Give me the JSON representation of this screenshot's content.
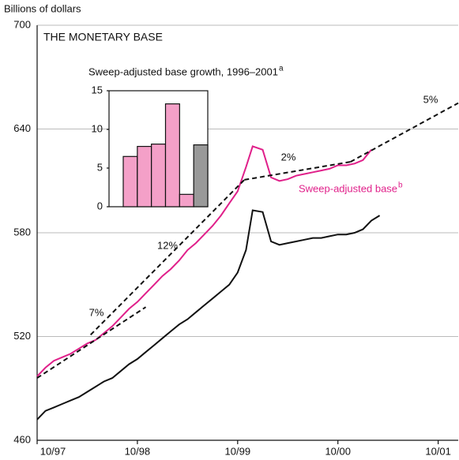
{
  "chart_data": [
    {
      "type": "line",
      "title": "THE MONETARY BASE",
      "y_axis_label": "Billions of dollars",
      "xlim": [
        0,
        50.4
      ],
      "ylim": [
        460,
        700
      ],
      "xticks": [
        {
          "value": 0,
          "label": "10/97"
        },
        {
          "value": 12,
          "label": "10/98"
        },
        {
          "value": 24,
          "label": "10/99"
        },
        {
          "value": 36,
          "label": "10/00"
        },
        {
          "value": 48,
          "label": "10/01"
        }
      ],
      "yticks": [
        460,
        520,
        580,
        640,
        700
      ],
      "grid": true,
      "series": [
        {
          "color": "#111111",
          "x": [
            0,
            1,
            2,
            3,
            4,
            5,
            6,
            7,
            8,
            9,
            10,
            11,
            12,
            13,
            14,
            15,
            16,
            17,
            18,
            19,
            20,
            21,
            22,
            23,
            24,
            25,
            25.8,
            27,
            28,
            29,
            30,
            31,
            32,
            33,
            34,
            35,
            36,
            37,
            38,
            39,
            40,
            41
          ],
          "values": [
            472,
            477,
            479,
            481,
            483,
            485,
            488,
            491,
            494,
            496,
            500,
            504,
            507,
            511,
            515,
            519,
            523,
            527,
            530,
            534,
            538,
            542,
            546,
            550,
            557,
            570,
            593,
            592,
            575,
            573,
            574,
            575,
            576,
            577,
            577,
            578,
            579,
            579,
            580,
            582,
            587,
            590
          ]
        },
        {
          "name": "Sweep-adjusted base",
          "note": "b",
          "color": "#e0208a",
          "x": [
            0,
            1,
            2,
            3,
            4,
            5,
            6,
            7,
            8,
            9,
            10,
            11,
            12,
            13,
            14,
            15,
            16,
            17,
            18,
            19,
            20,
            21,
            22,
            23,
            24,
            25,
            25.8,
            27,
            28,
            29,
            30,
            31,
            32,
            33,
            34,
            35,
            36,
            37,
            38,
            39,
            40
          ],
          "values": [
            497,
            502,
            506,
            508,
            510,
            513,
            516,
            518,
            522,
            526,
            531,
            536,
            540,
            545,
            550,
            555,
            559,
            564,
            570,
            574,
            579,
            584,
            590,
            597,
            604,
            618,
            630,
            628,
            612,
            610,
            611,
            613,
            614,
            615,
            616,
            617,
            619,
            619,
            620,
            622,
            628
          ]
        },
        {
          "name": "7%",
          "color": "#111111",
          "dashed": true,
          "x": [
            0,
            13
          ],
          "values": [
            496,
            537
          ]
        },
        {
          "name": "12%",
          "color": "#111111",
          "dashed": true,
          "x": [
            6.4,
            24.8
          ],
          "values": [
            521,
            610.6
          ]
        },
        {
          "name": "2%",
          "color": "#111111",
          "dashed": true,
          "x": [
            24.8,
            37.5
          ],
          "values": [
            610.6,
            621
          ]
        },
        {
          "name": "5%",
          "color": "#111111",
          "dashed": true,
          "x": [
            37.5,
            50.4
          ],
          "values": [
            621,
            655
          ]
        }
      ]
    },
    {
      "type": "bar",
      "title": "Sweep-adjusted base growth, 1996–2001",
      "note": "a",
      "values": [
        6.5,
        7.8,
        8.1,
        13.3,
        1.6,
        8.0
      ],
      "colors": [
        "#f4a0c8",
        "#f4a0c8",
        "#f4a0c8",
        "#f4a0c8",
        "#f4a0c8",
        "#999999"
      ],
      "ylim": [
        0,
        15
      ],
      "yticks": [
        0,
        5,
        10,
        15
      ]
    }
  ]
}
